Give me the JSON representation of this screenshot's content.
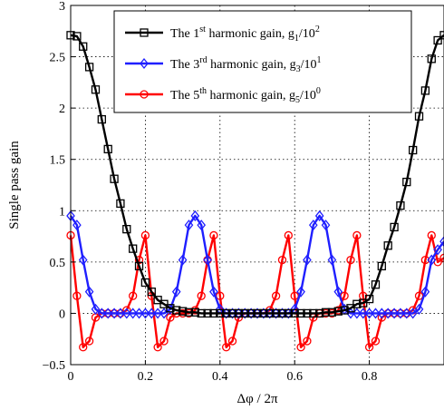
{
  "chart_data": {
    "type": "line",
    "xlabel": "Δφ / 2π",
    "ylabel": "Single pass gain",
    "xlim": [
      0,
      1
    ],
    "ylim": [
      -0.5,
      3
    ],
    "xticks": [
      "0",
      "0.2",
      "0.4",
      "0.6",
      "0.8"
    ],
    "yticks": [
      "−0.5",
      "0",
      "0.5",
      "1",
      "1.5",
      "2",
      "2.5",
      "3"
    ],
    "grid": true,
    "legend_position": "top-right",
    "series": [
      {
        "name": "The 1st harmonic gain, g1/10^2",
        "color": "#000000",
        "marker": "square",
        "legend": {
          "base": "The 1",
          "sup": "st",
          "mid": " harmonic gain, g",
          "sub": "1",
          "tail": "/10",
          "exp": "2"
        },
        "x": [
          0.0,
          0.0167,
          0.0333,
          0.05,
          0.0667,
          0.0833,
          0.1,
          0.1167,
          0.1333,
          0.15,
          0.1667,
          0.1833,
          0.2,
          0.2167,
          0.2333,
          0.25,
          0.2667,
          0.2833,
          0.3,
          0.3167,
          0.3333,
          0.35,
          0.3667,
          0.3833,
          0.4,
          0.4167,
          0.4333,
          0.45,
          0.4667,
          0.4833,
          0.5,
          0.5167,
          0.5333,
          0.55,
          0.5667,
          0.5833,
          0.6,
          0.6167,
          0.6333,
          0.65,
          0.6667,
          0.6833,
          0.7,
          0.7167,
          0.7333,
          0.75,
          0.7667,
          0.7833,
          0.8,
          0.8167,
          0.8333,
          0.85,
          0.8667,
          0.8833,
          0.9,
          0.9167,
          0.9333,
          0.95,
          0.9667,
          0.9833,
          1.0
        ],
        "y": [
          2.71,
          2.7,
          2.6,
          2.4,
          2.18,
          1.89,
          1.6,
          1.31,
          1.07,
          0.82,
          0.63,
          0.46,
          0.3,
          0.21,
          0.13,
          0.09,
          0.05,
          0.03,
          0.02,
          0.01,
          0.01,
          0.0,
          0.0,
          0.0,
          0.0,
          0.0,
          0.0,
          0.0,
          0.0,
          0.0,
          0.0,
          0.0,
          0.0,
          0.0,
          0.0,
          0.0,
          0.0,
          0.0,
          0.0,
          0.0,
          0.0,
          0.01,
          0.01,
          0.02,
          0.03,
          0.05,
          0.09,
          0.1,
          0.14,
          0.28,
          0.46,
          0.66,
          0.84,
          1.05,
          1.28,
          1.59,
          1.92,
          2.17,
          2.48,
          2.66,
          2.71
        ]
      },
      {
        "name": "The 3rd harmonic gain, g3/10^1",
        "color": "#1f1fff",
        "marker": "diamond",
        "legend": {
          "base": "The 3",
          "sup": "rd",
          "mid": " harmonic gain, g",
          "sub": "3",
          "tail": "/10",
          "exp": "1"
        },
        "x": [
          0.0,
          0.0167,
          0.0333,
          0.05,
          0.0667,
          0.0833,
          0.1,
          0.1167,
          0.1333,
          0.15,
          0.1667,
          0.1833,
          0.2,
          0.2167,
          0.2333,
          0.25,
          0.2667,
          0.2833,
          0.3,
          0.3167,
          0.3333,
          0.35,
          0.3667,
          0.3833,
          0.4,
          0.4167,
          0.4333,
          0.45,
          0.4667,
          0.4833,
          0.5,
          0.5167,
          0.5333,
          0.55,
          0.5667,
          0.5833,
          0.6,
          0.6167,
          0.6333,
          0.65,
          0.6667,
          0.6833,
          0.7,
          0.7167,
          0.7333,
          0.75,
          0.7667,
          0.7833,
          0.8,
          0.8167,
          0.8333,
          0.85,
          0.8667,
          0.8833,
          0.9,
          0.9167,
          0.9333,
          0.95,
          0.9667,
          0.9833,
          1.0
        ],
        "y": [
          0.95,
          0.86,
          0.52,
          0.21,
          0.04,
          0.0,
          0.0,
          0.0,
          0.0,
          0.0,
          0.0,
          0.0,
          0.0,
          0.0,
          0.0,
          0.0,
          0.04,
          0.21,
          0.52,
          0.86,
          0.95,
          0.86,
          0.52,
          0.21,
          0.04,
          0.0,
          0.0,
          0.0,
          0.0,
          0.0,
          0.0,
          0.0,
          0.0,
          0.0,
          0.0,
          0.0,
          0.04,
          0.21,
          0.52,
          0.86,
          0.95,
          0.86,
          0.52,
          0.21,
          0.04,
          0.0,
          0.0,
          0.0,
          0.0,
          0.0,
          0.0,
          0.0,
          0.0,
          0.0,
          0.0,
          0.0,
          0.04,
          0.21,
          0.52,
          0.62,
          0.7
        ]
      },
      {
        "name": "The 5th harmonic gain, g5/10^0",
        "color": "#ff0000",
        "marker": "circle",
        "legend": {
          "base": "The 5",
          "sup": "th",
          "mid": " harmonic gain, g",
          "sub": "5",
          "tail": "/10",
          "exp": "0"
        },
        "x": [
          0.0,
          0.0167,
          0.0333,
          0.05,
          0.0667,
          0.0833,
          0.1,
          0.1167,
          0.1333,
          0.15,
          0.1667,
          0.1833,
          0.2,
          0.2167,
          0.2333,
          0.25,
          0.2667,
          0.2833,
          0.3,
          0.3167,
          0.3333,
          0.35,
          0.3667,
          0.3833,
          0.4,
          0.4167,
          0.4333,
          0.45,
          0.4667,
          0.4833,
          0.5,
          0.5167,
          0.5333,
          0.55,
          0.5667,
          0.5833,
          0.6,
          0.6167,
          0.6333,
          0.65,
          0.6667,
          0.6833,
          0.7,
          0.7167,
          0.7333,
          0.75,
          0.7667,
          0.7833,
          0.8,
          0.8167,
          0.8333,
          0.85,
          0.8667,
          0.8833,
          0.9,
          0.9167,
          0.9333,
          0.95,
          0.9667,
          0.9833,
          1.0
        ],
        "y": [
          0.76,
          0.17,
          -0.33,
          -0.27,
          -0.04,
          0.0,
          0.0,
          0.0,
          0.0,
          0.03,
          0.17,
          0.52,
          0.76,
          0.17,
          -0.33,
          -0.27,
          -0.04,
          0.0,
          0.0,
          0.0,
          0.03,
          0.17,
          0.52,
          0.76,
          0.17,
          -0.33,
          -0.27,
          -0.04,
          0.0,
          0.0,
          0.0,
          0.0,
          0.03,
          0.17,
          0.52,
          0.76,
          0.17,
          -0.33,
          -0.27,
          -0.04,
          0.0,
          0.0,
          0.0,
          0.03,
          0.17,
          0.52,
          0.76,
          0.17,
          -0.33,
          -0.27,
          -0.04,
          0.0,
          0.0,
          0.0,
          0.0,
          0.03,
          0.17,
          0.52,
          0.76,
          0.5,
          0.54
        ]
      }
    ]
  }
}
